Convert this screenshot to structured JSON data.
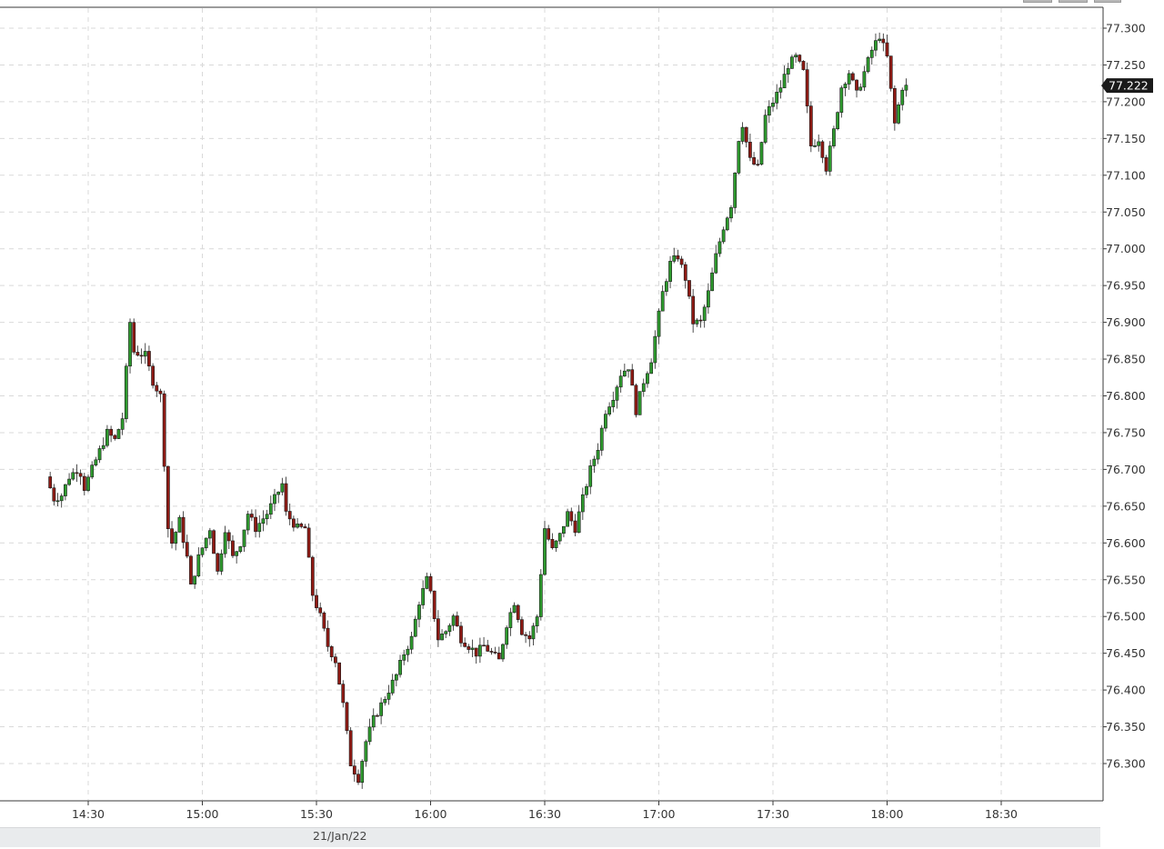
{
  "chart_data": {
    "type": "candlestick",
    "date_label": "21/Jan/22",
    "x_ticks": [
      "14:30",
      "15:00",
      "15:30",
      "16:00",
      "16:30",
      "17:00",
      "17:30",
      "18:00",
      "18:30"
    ],
    "y_ticks": [
      "77.300",
      "77.250",
      "77.200",
      "77.150",
      "77.100",
      "77.050",
      "77.000",
      "76.950",
      "76.900",
      "76.850",
      "76.800",
      "76.750",
      "76.700",
      "76.650",
      "76.600",
      "76.550",
      "76.500",
      "76.450",
      "76.400",
      "76.350",
      "76.300"
    ],
    "ylim": [
      76.26,
      77.312
    ],
    "last_price": "77.222",
    "grid": true,
    "colors": {
      "up": "#2e9a2e",
      "down": "#8f1a14",
      "wick": "#222222",
      "grid": "#d9d9d9",
      "price_tag_bg": "#1a1a1a",
      "price_tag_text": "#ffffff"
    },
    "close_series": [
      [
        "14:20",
        76.69
      ],
      [
        "14:22",
        76.66
      ],
      [
        "14:24",
        76.665
      ],
      [
        "14:26",
        76.69
      ],
      [
        "14:28",
        76.7
      ],
      [
        "14:29",
        76.695
      ],
      [
        "14:30",
        76.675
      ],
      [
        "14:32",
        76.7
      ],
      [
        "14:34",
        76.725
      ],
      [
        "14:36",
        76.75
      ],
      [
        "14:38",
        76.74
      ],
      [
        "14:40",
        76.77
      ],
      [
        "14:42",
        76.9
      ],
      [
        "14:43",
        76.86
      ],
      [
        "14:46",
        76.855
      ],
      [
        "14:48",
        76.82
      ],
      [
        "14:50",
        76.8
      ],
      [
        "14:52",
        76.62
      ],
      [
        "14:53",
        76.6
      ],
      [
        "14:55",
        76.63
      ],
      [
        "14:57",
        76.58
      ],
      [
        "14:58",
        76.54
      ],
      [
        "15:00",
        76.58
      ],
      [
        "15:03",
        76.62
      ],
      [
        "15:05",
        76.56
      ],
      [
        "15:07",
        76.62
      ],
      [
        "15:09",
        76.58
      ],
      [
        "15:11",
        76.6
      ],
      [
        "15:13",
        76.64
      ],
      [
        "15:15",
        76.62
      ],
      [
        "15:18",
        76.64
      ],
      [
        "15:20",
        76.66
      ],
      [
        "15:22",
        76.68
      ],
      [
        "15:23",
        76.64
      ],
      [
        "15:26",
        76.62
      ],
      [
        "15:28",
        76.62
      ],
      [
        "15:30",
        76.53
      ],
      [
        "15:32",
        76.5
      ],
      [
        "15:34",
        76.46
      ],
      [
        "15:36",
        76.44
      ],
      [
        "15:38",
        76.38
      ],
      [
        "15:40",
        76.3
      ],
      [
        "15:42",
        76.28
      ],
      [
        "15:44",
        76.33
      ],
      [
        "15:46",
        76.36
      ],
      [
        "15:48",
        76.38
      ],
      [
        "15:50",
        76.4
      ],
      [
        "15:52",
        76.42
      ],
      [
        "15:54",
        76.45
      ],
      [
        "15:56",
        76.47
      ],
      [
        "15:58",
        76.52
      ],
      [
        "16:00",
        76.55
      ],
      [
        "16:01",
        76.53
      ],
      [
        "16:03",
        76.47
      ],
      [
        "16:05",
        76.48
      ],
      [
        "16:07",
        76.5
      ],
      [
        "16:09",
        76.47
      ],
      [
        "16:11",
        76.46
      ],
      [
        "16:13",
        76.45
      ],
      [
        "16:15",
        76.46
      ],
      [
        "16:17",
        76.45
      ],
      [
        "16:19",
        76.44
      ],
      [
        "16:21",
        76.49
      ],
      [
        "16:23",
        76.52
      ],
      [
        "16:25",
        76.48
      ],
      [
        "16:27",
        76.47
      ],
      [
        "16:29",
        76.5
      ],
      [
        "16:31",
        76.62
      ],
      [
        "16:33",
        76.59
      ],
      [
        "16:35",
        76.61
      ],
      [
        "16:37",
        76.64
      ],
      [
        "16:39",
        76.62
      ],
      [
        "16:41",
        76.66
      ],
      [
        "16:43",
        76.7
      ],
      [
        "16:45",
        76.73
      ],
      [
        "16:47",
        76.78
      ],
      [
        "16:49",
        76.8
      ],
      [
        "16:51",
        76.83
      ],
      [
        "16:53",
        76.84
      ],
      [
        "16:55",
        76.78
      ],
      [
        "16:57",
        76.82
      ],
      [
        "16:59",
        76.85
      ],
      [
        "17:00",
        76.88
      ],
      [
        "17:02",
        76.94
      ],
      [
        "17:04",
        76.98
      ],
      [
        "17:06",
        76.99
      ],
      [
        "17:08",
        76.96
      ],
      [
        "17:10",
        76.9
      ],
      [
        "17:12",
        76.9
      ],
      [
        "17:14",
        76.94
      ],
      [
        "17:16",
        76.99
      ],
      [
        "17:18",
        77.03
      ],
      [
        "17:20",
        77.06
      ],
      [
        "17:22",
        77.15
      ],
      [
        "17:23",
        77.17
      ],
      [
        "17:25",
        77.12
      ],
      [
        "17:27",
        77.11
      ],
      [
        "17:29",
        77.18
      ],
      [
        "17:31",
        77.2
      ],
      [
        "17:33",
        77.22
      ],
      [
        "17:35",
        77.25
      ],
      [
        "17:37",
        77.26
      ],
      [
        "17:39",
        77.24
      ],
      [
        "17:41",
        77.14
      ],
      [
        "17:43",
        77.15
      ],
      [
        "17:45",
        77.11
      ],
      [
        "17:47",
        77.16
      ],
      [
        "17:49",
        77.22
      ],
      [
        "17:51",
        77.24
      ],
      [
        "17:53",
        77.21
      ],
      [
        "17:55",
        77.24
      ],
      [
        "17:57",
        77.27
      ],
      [
        "17:59",
        77.29
      ],
      [
        "18:01",
        77.26
      ],
      [
        "18:03",
        77.17
      ],
      [
        "18:05",
        77.22
      ]
    ]
  }
}
